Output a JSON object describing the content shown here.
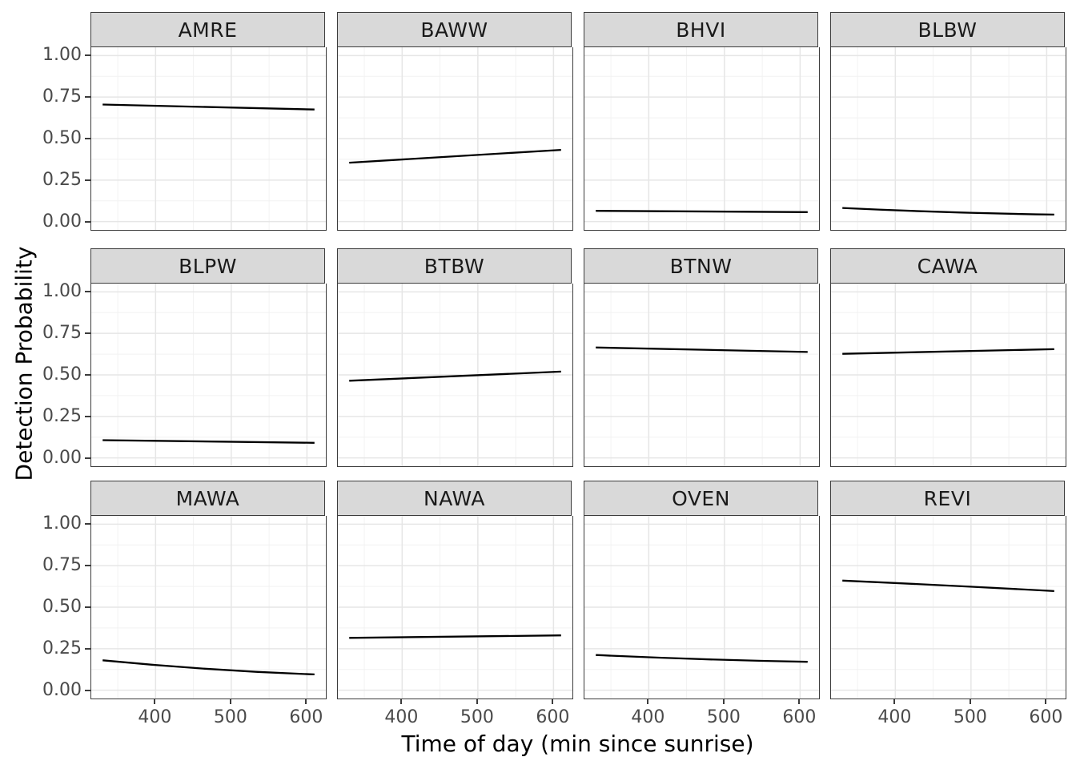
{
  "chart_data": {
    "type": "line",
    "title": "",
    "xlabel": "Time of day (min since sunrise)",
    "ylabel": "Detection Probability",
    "x_ticks": [
      "400",
      "500",
      "600"
    ],
    "x_tick_values": [
      400,
      500,
      600
    ],
    "x_minor_ticks": [
      350,
      450,
      550
    ],
    "y_tick_labels": [
      "1.00",
      "0.75",
      "0.50",
      "0.25",
      "0.00"
    ],
    "y_tick_values": [
      1.0,
      0.75,
      0.5,
      0.25,
      0.0
    ],
    "y_minor_ticks": [
      0.875,
      0.625,
      0.375,
      0.125
    ],
    "xlim": [
      315,
      625
    ],
    "ylim": [
      -0.05,
      1.05
    ],
    "x_points": [
      330,
      470,
      610
    ],
    "grid": true,
    "legend_position": "none",
    "line_color": "#000000",
    "facets": [
      {
        "label": "AMRE",
        "y": [
          0.705,
          0.69,
          0.675
        ]
      },
      {
        "label": "BAWW",
        "y": [
          0.355,
          0.394,
          0.432
        ]
      },
      {
        "label": "BHVI",
        "y": [
          0.065,
          0.061,
          0.057
        ]
      },
      {
        "label": "BLBW",
        "y": [
          0.082,
          0.057,
          0.042
        ]
      },
      {
        "label": "BLPW",
        "y": [
          0.107,
          0.098,
          0.091
        ]
      },
      {
        "label": "BTBW",
        "y": [
          0.465,
          0.493,
          0.52
        ]
      },
      {
        "label": "BTNW",
        "y": [
          0.665,
          0.652,
          0.638
        ]
      },
      {
        "label": "CAWA",
        "y": [
          0.627,
          0.642,
          0.655
        ]
      },
      {
        "label": "MAWA",
        "y": [
          0.18,
          0.128,
          0.095
        ]
      },
      {
        "label": "NAWA",
        "y": [
          0.315,
          0.322,
          0.33
        ]
      },
      {
        "label": "OVEN",
        "y": [
          0.212,
          0.187,
          0.171
        ]
      },
      {
        "label": "REVI",
        "y": [
          0.66,
          0.63,
          0.597
        ]
      }
    ]
  },
  "style": {
    "strip_fill": "#d9d9d9",
    "border_color": "#3c3c3c",
    "grid_major": "#e6e6e6",
    "grid_minor": "#f2f2f2",
    "tick_label_color": "#4a4a4a",
    "axis_title_color": "#000000",
    "background": "#ffffff"
  }
}
